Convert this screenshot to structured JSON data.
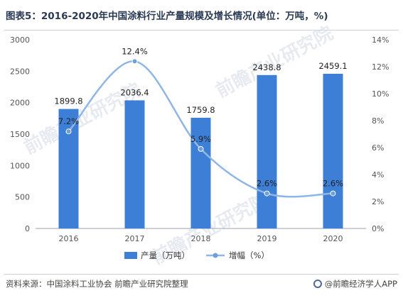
{
  "title": "图表5：2016-2020年中国涂料行业产量规模及增长情况(单位：万吨，%)",
  "source_text": "资料来源：中国涂料工业协会 前瞻产业研究院整理",
  "brand_text": "@前瞻经济学人APP",
  "watermark_text": "前瞻产业研究院",
  "colors": {
    "bar": "#3d7fd6",
    "line": "#8fb6e6",
    "point": "#6e9fd8",
    "axis": "#555555"
  },
  "chart_data": {
    "type": "bar",
    "categories": [
      "2016",
      "2017",
      "2018",
      "2019",
      "2020"
    ],
    "series": [
      {
        "name": "产量（万吨）",
        "type": "bar",
        "axis": "left",
        "values": [
          1899.8,
          2036.4,
          1759.8,
          2438.8,
          2459.1
        ],
        "labels": [
          "1899.8",
          "2036.4",
          "1759.8",
          "2438.8",
          "2459.1"
        ]
      },
      {
        "name": "增幅（%）",
        "type": "line",
        "axis": "right",
        "values": [
          7.2,
          12.4,
          5.9,
          2.6,
          2.6
        ],
        "labels": [
          "7.2%",
          "12.4%",
          "5.9%",
          "2.6%",
          "2.6%"
        ]
      }
    ],
    "y_left": {
      "min": 0,
      "max": 3000,
      "ticks": [
        "0",
        "500",
        "1000",
        "1500",
        "2000",
        "2500",
        "3000"
      ]
    },
    "y_right": {
      "min": 0,
      "max": 14,
      "ticks": [
        "0%",
        "2%",
        "4%",
        "6%",
        "8%",
        "10%",
        "12%",
        "14%"
      ]
    },
    "legend_position": "bottom",
    "grid": false
  }
}
